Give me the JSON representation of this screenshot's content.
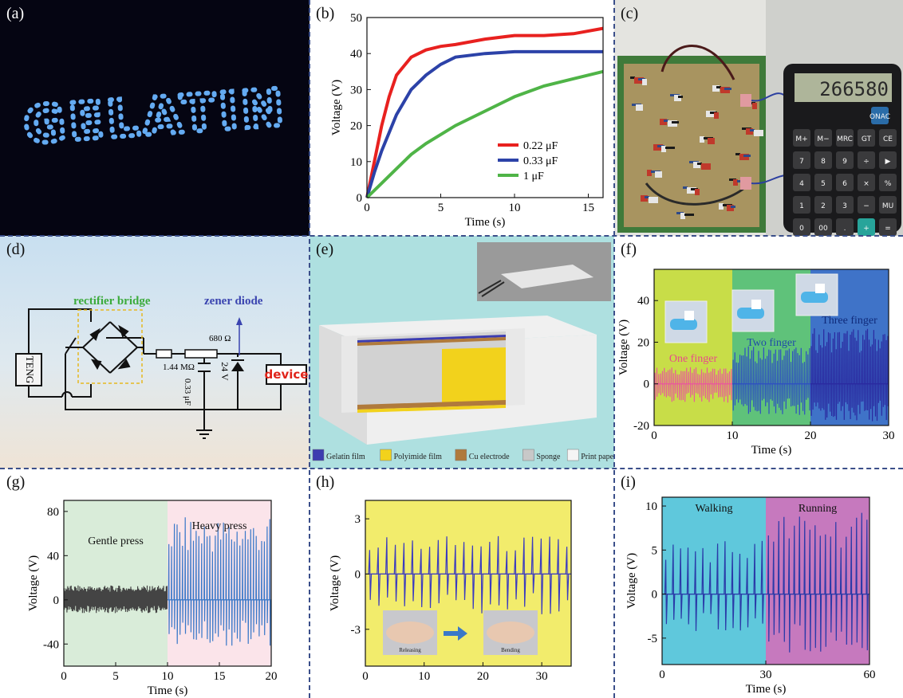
{
  "panels": {
    "a": {
      "label": "(a)",
      "photo_text": "GELATIN"
    },
    "b": {
      "label": "(b)"
    },
    "c": {
      "label": "(c)",
      "display": "266580",
      "keys": [
        "ONAC",
        "M+",
        "M−",
        "MRC",
        "GT",
        "CE",
        "7",
        "8",
        "9",
        "÷",
        "▶",
        "4",
        "5",
        "6",
        "×",
        "%",
        "1",
        "2",
        "3",
        "−",
        "MU",
        "0",
        "00",
        ".",
        "+",
        "="
      ]
    },
    "d": {
      "label": "(d)",
      "tag_rectifier": "rectifier bridge",
      "tag_zener": "zener diode",
      "r1": "1.44 MΩ",
      "r2": "680 Ω",
      "cap": "0.33 μF",
      "zener_v": "24 V",
      "teng": "TENG",
      "device": "device"
    },
    "e": {
      "label": "(e)",
      "legend": [
        {
          "name": "Gelatin film",
          "color": "#3c3cb0"
        },
        {
          "name": "Polyimide film",
          "color": "#f2d21c"
        },
        {
          "name": "Cu electrode",
          "color": "#b07a3c"
        },
        {
          "name": "Sponge",
          "color": "#c8c8c8"
        },
        {
          "name": "Print paper",
          "color": "#f4f4f4"
        }
      ]
    },
    "f": {
      "label": "(f)"
    },
    "g": {
      "label": "(g)"
    },
    "h": {
      "label": "(h)",
      "inset_left": "Releasing",
      "inset_right": "Bending"
    },
    "i": {
      "label": "(i)"
    }
  },
  "chart_data": [
    {
      "id": "b",
      "type": "line",
      "xlabel": "Time (s)",
      "ylabel": "Voltage (V)",
      "xlim": [
        0,
        16
      ],
      "ylim": [
        0,
        50
      ],
      "xticks": [
        0,
        5,
        10,
        15
      ],
      "yticks": [
        0,
        10,
        20,
        30,
        40,
        50
      ],
      "legend_position": "center-right",
      "series": [
        {
          "name": "0.22 μF",
          "color": "#e8211f",
          "x": [
            0,
            0.5,
            1,
            1.5,
            2,
            3,
            4,
            5,
            6,
            8,
            10,
            12,
            14,
            16
          ],
          "y": [
            0,
            10,
            20,
            28,
            34,
            39,
            41,
            42,
            42.5,
            44,
            45,
            45,
            45.5,
            47
          ]
        },
        {
          "name": "0.33 μF",
          "color": "#2c42a8",
          "x": [
            0,
            0.5,
            1,
            2,
            3,
            4,
            5,
            6,
            8,
            10,
            12,
            14,
            16
          ],
          "y": [
            0,
            7,
            13,
            23,
            30,
            34,
            37,
            39,
            40,
            40.5,
            40.5,
            40.5,
            40.5
          ]
        },
        {
          "name": "1  μF",
          "color": "#4fb447",
          "x": [
            0,
            1,
            2,
            3,
            4,
            6,
            8,
            10,
            12,
            14,
            16
          ],
          "y": [
            0,
            4,
            8,
            12,
            15,
            20,
            24,
            28,
            31,
            33,
            35
          ]
        }
      ]
    },
    {
      "id": "f",
      "type": "line",
      "xlabel": "Time (s)",
      "ylabel": "Voltage (V)",
      "xlim": [
        0,
        30
      ],
      "ylim": [
        -20,
        55
      ],
      "xticks": [
        0,
        10,
        20,
        30
      ],
      "yticks": [
        -20,
        0,
        20,
        40
      ],
      "regions": [
        {
          "text": "One finger",
          "from": 0,
          "to": 10,
          "bg": "#c8dd48",
          "text_color": "#e84a8a",
          "amp_pos": 8,
          "amp_neg": 9,
          "line": "#e85a9a"
        },
        {
          "text": "Two finger",
          "from": 10,
          "to": 20,
          "bg": "#5fc27a",
          "text_color": "#1f4aa8",
          "amp_pos": 18,
          "amp_neg": 15,
          "line": "#2f50c0"
        },
        {
          "text": "Three finger",
          "from": 20,
          "to": 30,
          "bg": "#3f73c8",
          "text_color": "#0f2a7a",
          "amp_pos": 27,
          "amp_neg": 18,
          "line": "#2a2aa0"
        }
      ]
    },
    {
      "id": "g",
      "type": "line",
      "xlabel": "Time (s)",
      "ylabel": "Voltage (V)",
      "xlim": [
        0,
        20
      ],
      "ylim": [
        -60,
        90
      ],
      "xticks": [
        0,
        5,
        10,
        15,
        20
      ],
      "yticks": [
        -40,
        0,
        40,
        80
      ],
      "regions": [
        {
          "text": "Gentle press",
          "from": 0,
          "to": 10,
          "bg": "#d9ecd9",
          "text_color": "#111",
          "amp_pos": 13,
          "amp_neg": 12,
          "line": "#444444"
        },
        {
          "text": "Heavy press",
          "from": 10,
          "to": 20,
          "bg": "#fbe4ea",
          "text_color": "#111",
          "amp_pos": 75,
          "amp_neg": 42,
          "line": "#3a78c8"
        }
      ]
    },
    {
      "id": "h",
      "type": "line",
      "xlabel": "",
      "ylabel": "Voltage (V)",
      "xlim": [
        0,
        35
      ],
      "ylim": [
        -5,
        4
      ],
      "xticks": [
        0,
        10,
        20,
        30
      ],
      "yticks": [
        -3,
        0,
        3
      ],
      "regions": [
        {
          "text": "",
          "from": 0,
          "to": 35,
          "bg": "#f2ec6c",
          "text_color": "#111",
          "amp_pos": 2.1,
          "amp_neg": 2.2,
          "line": "#3a3ac0"
        }
      ]
    },
    {
      "id": "i",
      "type": "line",
      "xlabel": "Time (s)",
      "ylabel": "Voltage (V)",
      "xlim": [
        0,
        60
      ],
      "ylim": [
        -8,
        11
      ],
      "xticks": [
        0,
        30,
        60
      ],
      "yticks": [
        -5,
        0,
        5,
        10
      ],
      "regions": [
        {
          "text": "Walking",
          "from": 0,
          "to": 30,
          "bg": "#5fc8dc",
          "text_color": "#111",
          "amp_pos": 6.4,
          "amp_neg": 4.3,
          "line": "#2a3aa8"
        },
        {
          "text": "Running",
          "from": 30,
          "to": 60,
          "bg": "#c679be",
          "text_color": "#111",
          "amp_pos": 9.3,
          "amp_neg": 6.8,
          "line": "#2a3aa8"
        }
      ]
    }
  ]
}
